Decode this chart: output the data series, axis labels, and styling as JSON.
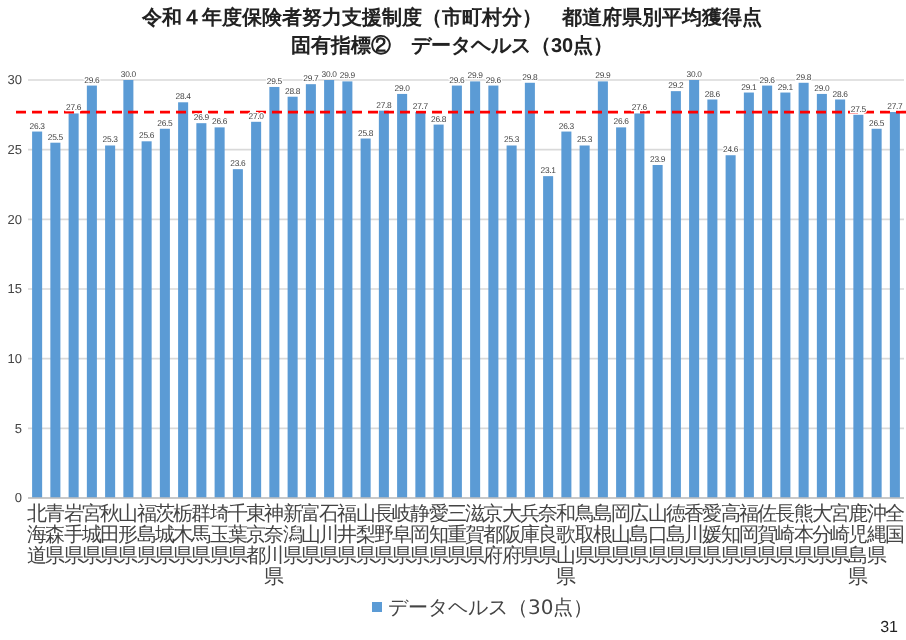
{
  "chart_data": {
    "type": "bar",
    "title": "令和４年度保険者努力支援制度（市町村分）　都道府県別平均獲得点",
    "subtitle": "固有指標②　データヘルス（30点）",
    "categories": [
      "北海道",
      "青森県",
      "岩手県",
      "宮城県",
      "秋田県",
      "山形県",
      "福島県",
      "茨城県",
      "栃木県",
      "群馬県",
      "埼玉県",
      "千葉県",
      "東京都",
      "神奈川県",
      "新潟県",
      "富山県",
      "石川県",
      "福井県",
      "山梨県",
      "長野県",
      "岐阜県",
      "静岡県",
      "愛知県",
      "三重県",
      "滋賀県",
      "京都府",
      "大阪府",
      "兵庫県",
      "奈良県",
      "和歌山県",
      "鳥取県",
      "島根県",
      "岡山県",
      "広島県",
      "山口県",
      "徳島県",
      "香川県",
      "愛媛県",
      "高知県",
      "福岡県",
      "佐賀県",
      "長崎県",
      "熊本県",
      "大分県",
      "宮崎県",
      "鹿児島県",
      "沖縄県",
      "全国"
    ],
    "series": [
      {
        "name": "データヘルス（30点）",
        "color": "#5b9bd5",
        "values": [
          26.3,
          25.5,
          27.6,
          29.6,
          25.3,
          30.0,
          25.6,
          26.5,
          28.4,
          26.9,
          26.6,
          23.6,
          27.0,
          29.5,
          28.8,
          29.7,
          30.0,
          29.9,
          25.8,
          27.8,
          29.0,
          27.7,
          26.8,
          29.6,
          29.9,
          29.6,
          25.3,
          29.8,
          23.1,
          26.3,
          25.3,
          29.9,
          26.6,
          27.6,
          23.9,
          29.2,
          30.0,
          28.6,
          24.6,
          29.1,
          29.6,
          29.1,
          29.8,
          29.0,
          28.6,
          27.5,
          26.5,
          27.7
        ],
        "value_labels": [
          "26.3",
          "25.5",
          "27.6",
          "29.6",
          "25.3",
          "30.0",
          "25.6",
          "26.5",
          "28.4",
          "26.9",
          "26.6",
          "23.6",
          "27.0",
          "29.5",
          "28.8",
          "29.7",
          "30.0",
          "29.9",
          "25.8",
          "27.8",
          "29.0",
          "27.7",
          "26.8",
          "29.6",
          "29.9",
          "29.6",
          "25.3",
          "29.8",
          "23.1",
          "26.3",
          "25.3",
          "29.9",
          "26.6",
          "27.6",
          "23.9",
          "29.2",
          "30.0",
          "28.6",
          "24.6",
          "29.1",
          "29.6",
          "29.1",
          "29.8",
          "29.0",
          "28.6",
          "27.5",
          "26.5",
          "27.7"
        ]
      }
    ],
    "ylim": [
      0,
      30
    ],
    "yticks": [
      0,
      5,
      10,
      15,
      20,
      25,
      30
    ],
    "grid": "y",
    "legend": "bottom",
    "ref_lines": [
      {
        "axis": "y",
        "value": 27.7,
        "color": "#ff0000",
        "line_style": "dashed"
      }
    ],
    "annotations": [
      "31"
    ]
  }
}
